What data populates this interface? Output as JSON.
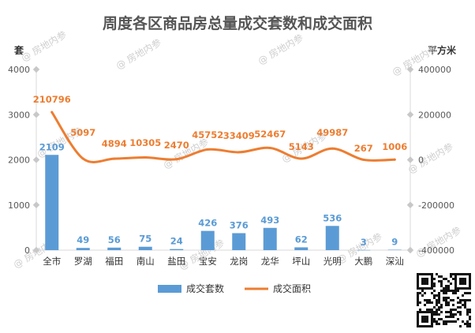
{
  "chart_data": {
    "type": "bar",
    "title": "周度各区商品房总量成交套数和成交面积",
    "categories": [
      "全市",
      "罗湖",
      "福田",
      "南山",
      "盐田",
      "宝安",
      "龙岗",
      "龙华",
      "坪山",
      "光明",
      "大鹏",
      "深汕"
    ],
    "series": [
      {
        "name": "成交套数",
        "type": "bar",
        "axis": "left",
        "color": "#5b9bd5",
        "values": [
          2109,
          49,
          56,
          75,
          24,
          426,
          376,
          493,
          62,
          536,
          3,
          9
        ]
      },
      {
        "name": "成交面积",
        "type": "line",
        "axis": "right",
        "color": "#ed7d31",
        "values": [
          210796,
          5097,
          4894,
          10305,
          2470,
          45752,
          33409,
          52467,
          5143,
          49987,
          267,
          1006
        ]
      }
    ],
    "y_left": {
      "unit": "套",
      "min": 0,
      "max": 4000,
      "ticks": [
        0,
        1000,
        2000,
        3000,
        4000
      ]
    },
    "y_right": {
      "unit": "平方米",
      "min": -400000,
      "max": 400000,
      "ticks": [
        -400000,
        -200000,
        0,
        200000,
        400000
      ]
    },
    "legend_position": "bottom",
    "grid": false
  },
  "watermark": "房地内参"
}
